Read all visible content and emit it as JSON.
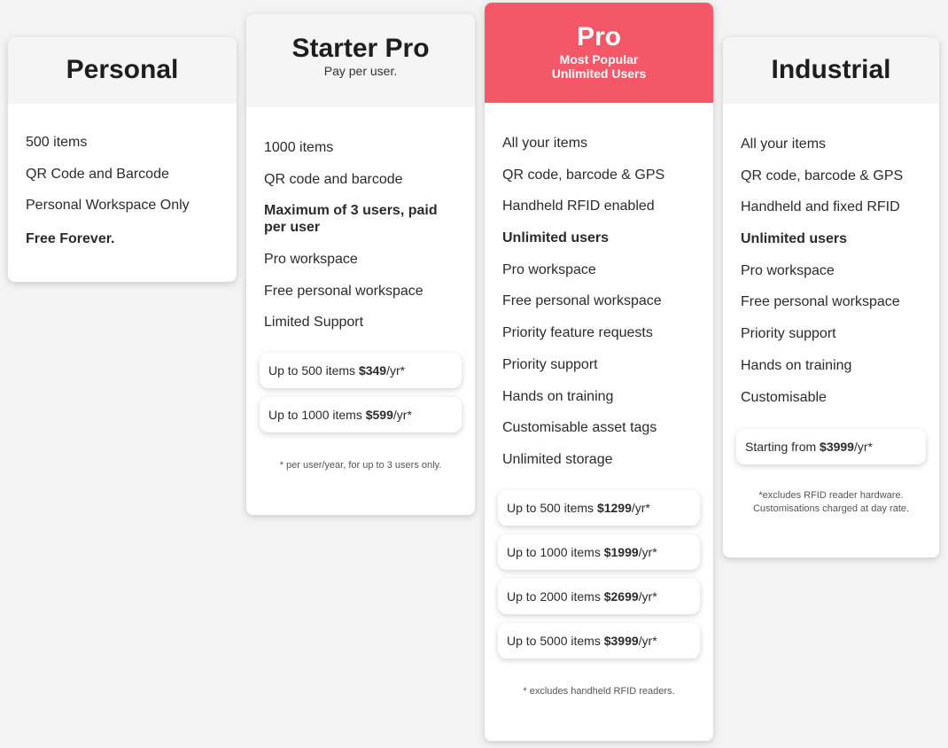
{
  "plans": [
    {
      "title": "Personal",
      "features": [
        {
          "text": "500 items"
        },
        {
          "text": "QR Code and Barcode"
        },
        {
          "text": "Personal Workspace Only"
        },
        {
          "text": "Free Forever.",
          "bold": true
        }
      ]
    },
    {
      "title": "Starter Pro",
      "subtitle": "Pay per user.",
      "features": [
        {
          "text": "1000 items"
        },
        {
          "text": "QR code and barcode"
        },
        {
          "text": "Maximum of 3 users, paid per user",
          "bold": true
        },
        {
          "text": "Pro workspace"
        },
        {
          "text": "Free personal workspace"
        },
        {
          "text": "Limited Support"
        }
      ],
      "prices": [
        {
          "prefix": "Up to 500 items ",
          "price": "$349",
          "suffix": "/yr*"
        },
        {
          "prefix": "Up to 1000 items ",
          "price": "$599",
          "suffix": "/yr*"
        }
      ],
      "note": "* per user/year, for up to 3 users only."
    },
    {
      "title": "Pro",
      "subtitle": "Most Popular",
      "subtitle2": "Unlimited Users",
      "accent": "#f45868",
      "features": [
        {
          "text": "All your items"
        },
        {
          "text": "QR code, barcode & GPS"
        },
        {
          "text": "Handheld RFID enabled"
        },
        {
          "text": "Unlimited users",
          "bold": true
        },
        {
          "text": "Pro workspace"
        },
        {
          "text": "Free personal workspace"
        },
        {
          "text": "Priority feature requests"
        },
        {
          "text": "Priority support"
        },
        {
          "text": "Hands on training"
        },
        {
          "text": "Customisable asset tags"
        },
        {
          "text": "Unlimited storage"
        }
      ],
      "prices": [
        {
          "prefix": "Up to 500 items ",
          "price": "$1299",
          "suffix": "/yr*"
        },
        {
          "prefix": "Up to 1000 items ",
          "price": "$1999",
          "suffix": "/yr*"
        },
        {
          "prefix": "Up to 2000 items ",
          "price": "$2699",
          "suffix": "/yr*"
        },
        {
          "prefix": "Up to 5000 items ",
          "price": "$3999",
          "suffix": "/yr*"
        }
      ],
      "note": "* excludes handheld RFID readers."
    },
    {
      "title": "Industrial",
      "features": [
        {
          "text": "All your items"
        },
        {
          "text": "QR code, barcode & GPS"
        },
        {
          "text": "Handheld and fixed RFID"
        },
        {
          "text": "Unlimited users",
          "bold": true
        },
        {
          "text": "Pro workspace"
        },
        {
          "text": "Free personal workspace"
        },
        {
          "text": "Priority support"
        },
        {
          "text": "Hands on training"
        },
        {
          "text": "Customisable"
        }
      ],
      "prices": [
        {
          "prefix": "Starting from ",
          "price": "$3999",
          "suffix": "/yr*"
        }
      ],
      "note": "*excludes RFID reader hardware.",
      "note2": "Customisations charged at day rate."
    }
  ]
}
